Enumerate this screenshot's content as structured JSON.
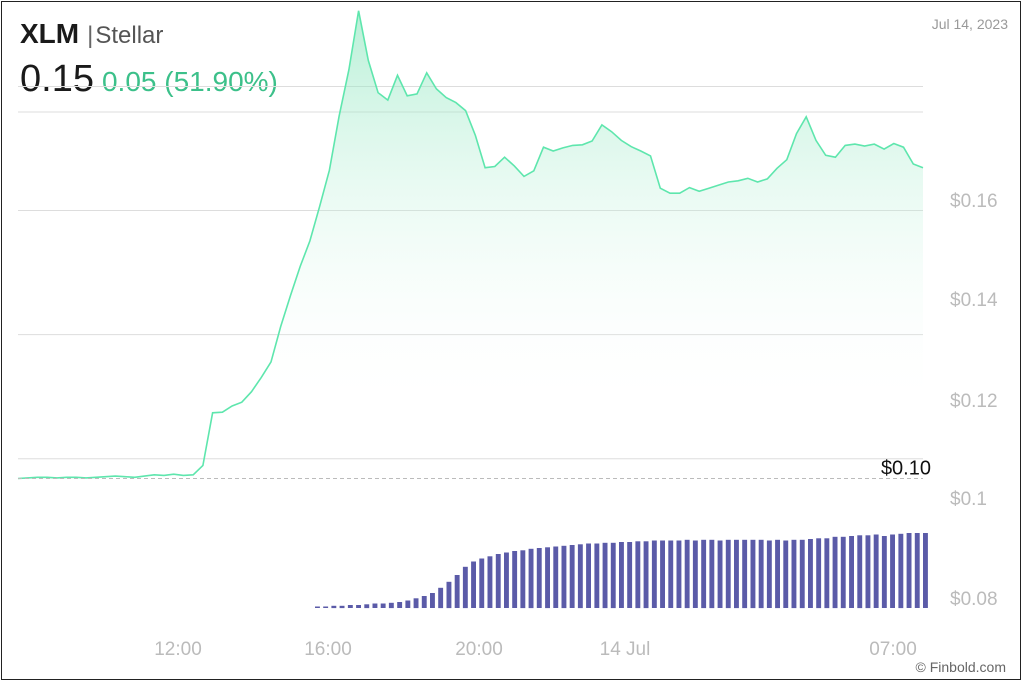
{
  "header": {
    "symbol": "XLM",
    "separator": "|",
    "name": "Stellar",
    "price": "0.15",
    "change": "0.05 (51.90%)",
    "date": "Jul 14, 2023"
  },
  "footer": {
    "credit": "© Finbold.com"
  },
  "colors": {
    "line": "#5ee6ad",
    "fill": "#aef0cf",
    "volume": "#5b5ba8",
    "change_up": "#3cc08a",
    "grid": "#dddddd",
    "axis_text": "#bbbbbb"
  },
  "chart_data": {
    "type": "line",
    "title": "",
    "xlabel": "",
    "ylabel": "",
    "x_ticks": [
      "12:00",
      "16:00",
      "20:00",
      "14 Jul",
      "07:00"
    ],
    "y_ticks": [
      "$0.16",
      "$0.14",
      "$0.12",
      "$0.1",
      "$0.08"
    ],
    "ylim": [
      0.074,
      0.172
    ],
    "previous_close": {
      "label": "$0.10",
      "value": 0.0968
    },
    "series": [
      {
        "values": [
          0.0968,
          0.0969,
          0.097,
          0.097,
          0.0969,
          0.097,
          0.097,
          0.0969,
          0.097,
          0.0971,
          0.0972,
          0.0971,
          0.097,
          0.0972,
          0.0974,
          0.0973,
          0.0975,
          0.0973,
          0.0974,
          0.0989,
          0.1074,
          0.1075,
          0.1085,
          0.1091,
          0.1108,
          0.1131,
          0.1156,
          0.1213,
          0.1263,
          0.131,
          0.1351,
          0.1407,
          0.1465,
          0.1552,
          0.1627,
          0.1722,
          0.1642,
          0.159,
          0.1578,
          0.1618,
          0.1585,
          0.1588,
          0.1622,
          0.1596,
          0.1582,
          0.1574,
          0.1561,
          0.1521,
          0.1469,
          0.1471,
          0.1486,
          0.1472,
          0.1455,
          0.1464,
          0.1502,
          0.1496,
          0.1501,
          0.1505,
          0.1506,
          0.1512,
          0.1538,
          0.1527,
          0.1513,
          0.1503,
          0.1496,
          0.1488,
          0.1436,
          0.1428,
          0.1428,
          0.1437,
          0.1431,
          0.1436,
          0.1441,
          0.1446,
          0.1448,
          0.1452,
          0.1446,
          0.1451,
          0.1468,
          0.1482,
          0.1524,
          0.1551,
          0.1513,
          0.1489,
          0.1486,
          0.1505,
          0.1507,
          0.1504,
          0.1507,
          0.1499,
          0.1508,
          0.1502,
          0.1475,
          0.1469
        ]
      }
    ],
    "volume": [
      0.02,
      0.02,
      0.03,
      0.03,
      0.04,
      0.04,
      0.05,
      0.06,
      0.06,
      0.07,
      0.08,
      0.1,
      0.13,
      0.16,
      0.2,
      0.27,
      0.35,
      0.44,
      0.55,
      0.62,
      0.66,
      0.69,
      0.72,
      0.74,
      0.76,
      0.77,
      0.79,
      0.8,
      0.81,
      0.82,
      0.83,
      0.84,
      0.85,
      0.86,
      0.86,
      0.87,
      0.87,
      0.88,
      0.88,
      0.89,
      0.89,
      0.9,
      0.9,
      0.9,
      0.9,
      0.91,
      0.9,
      0.91,
      0.91,
      0.9,
      0.91,
      0.91,
      0.91,
      0.91,
      0.91,
      0.9,
      0.91,
      0.9,
      0.91,
      0.91,
      0.92,
      0.93,
      0.93,
      0.95,
      0.95,
      0.96,
      0.97,
      0.97,
      0.98,
      0.96,
      0.98,
      0.99,
      1.0,
      1.0,
      1.0
    ]
  }
}
